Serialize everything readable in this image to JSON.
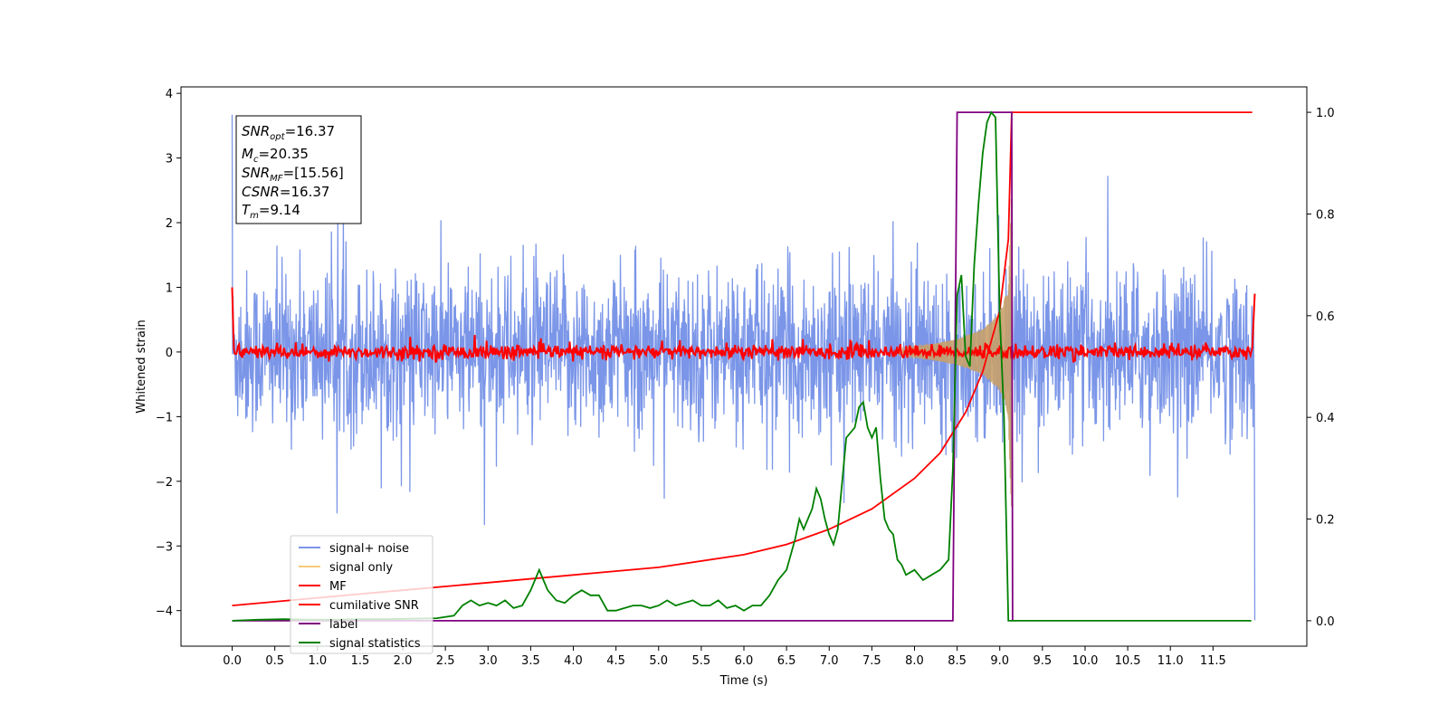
{
  "chart_data": {
    "type": "line",
    "xlabel": "Time (s)",
    "ylabel": "Whitened strain",
    "xlim": [
      -0.6,
      12.6
    ],
    "ylim": [
      -4.55,
      4.1
    ],
    "ylim_right": [
      -0.05,
      1.05
    ],
    "xticks": [
      "0.0",
      "0.5",
      "1.0",
      "1.5",
      "2.0",
      "2.5",
      "3.0",
      "3.5",
      "4.0",
      "4.5",
      "5.0",
      "5.5",
      "6.0",
      "6.5",
      "7.0",
      "7.5",
      "8.0",
      "8.5",
      "9.0",
      "9.5",
      "10.0",
      "10.5",
      "11.0",
      "11.5"
    ],
    "yticks_left": [
      "4",
      "3",
      "2",
      "1",
      "0",
      "−1",
      "−2",
      "−3",
      "−4"
    ],
    "yticks_right": [
      "1.0",
      "0.8",
      "0.6",
      "0.4",
      "0.2",
      "0.0"
    ],
    "grid": false,
    "legend_position": "lower-left",
    "annotation": {
      "snr_opt": "SNR",
      "snr_opt_sub": "opt",
      "snr_opt_value": "=16.37",
      "mc": "M",
      "mc_sub": "c",
      "mc_value": "=20.35",
      "snr_mf": "SNR",
      "snr_mf_sub": "MF",
      "snr_mf_value": "=[15.56]",
      "csnr": "CSNR",
      "csnr_value": "=16.37",
      "tm": "T",
      "tm_sub": "m",
      "tm_value": "=9.14"
    },
    "series": [
      {
        "name": "signal+ noise",
        "color": "#7b96e8",
        "axis": "left",
        "description_values": {
          "t_start": 0.0,
          "t_end": 11.99,
          "typical_range": [
            -1.6,
            1.6
          ],
          "max": 3.67,
          "min": -4.15
        }
      },
      {
        "name": "signal only",
        "color": "#f6c97a",
        "axis": "left",
        "x": [
          7.8,
          8.2,
          8.5,
          8.8,
          9.0,
          9.1,
          9.14
        ],
        "amplitude": [
          0.05,
          0.12,
          0.2,
          0.35,
          0.6,
          1.0,
          2.7
        ]
      },
      {
        "name": "MF",
        "color": "#ff0000",
        "axis": "left",
        "x": [
          0.0,
          0.02,
          11.96,
          11.99
        ],
        "y": [
          1.0,
          0.0,
          0.0,
          0.9
        ],
        "noise_range": [
          -0.2,
          0.2
        ]
      },
      {
        "name": "cumilative SNR",
        "color": "#ff0000",
        "axis": "right",
        "x": [
          0.0,
          1.0,
          2.0,
          3.0,
          4.0,
          5.0,
          6.0,
          6.5,
          7.0,
          7.5,
          8.0,
          8.3,
          8.6,
          8.8,
          9.0,
          9.1,
          9.14,
          9.15,
          11.96
        ],
        "y": [
          0.03,
          0.045,
          0.06,
          0.075,
          0.09,
          0.105,
          0.13,
          0.15,
          0.18,
          0.22,
          0.28,
          0.33,
          0.41,
          0.49,
          0.61,
          0.75,
          1.0,
          1.0,
          1.0
        ]
      },
      {
        "name": "label",
        "color": "#800080",
        "axis": "right",
        "x": [
          0.0,
          8.45,
          8.5,
          9.1,
          9.14,
          9.15
        ],
        "y": [
          0.0,
          0.0,
          1.0,
          1.0,
          1.0,
          0.0
        ]
      },
      {
        "name": "signal statistics",
        "color": "#008000",
        "axis": "right",
        "x": [
          0.0,
          0.3,
          0.6,
          0.9,
          1.2,
          1.5,
          1.8,
          2.1,
          2.4,
          2.6,
          2.7,
          2.8,
          2.9,
          3.0,
          3.1,
          3.2,
          3.3,
          3.4,
          3.5,
          3.6,
          3.65,
          3.7,
          3.8,
          3.9,
          4.0,
          4.1,
          4.2,
          4.3,
          4.4,
          4.5,
          4.6,
          4.7,
          4.8,
          4.9,
          5.0,
          5.1,
          5.2,
          5.3,
          5.4,
          5.5,
          5.6,
          5.7,
          5.8,
          5.9,
          6.0,
          6.1,
          6.2,
          6.3,
          6.4,
          6.5,
          6.6,
          6.65,
          6.7,
          6.75,
          6.8,
          6.85,
          6.9,
          6.95,
          7.0,
          7.05,
          7.1,
          7.2,
          7.3,
          7.35,
          7.4,
          7.45,
          7.5,
          7.55,
          7.6,
          7.65,
          7.7,
          7.75,
          7.8,
          7.85,
          7.9,
          8.0,
          8.1,
          8.2,
          8.3,
          8.4,
          8.45,
          8.5,
          8.55,
          8.6,
          8.65,
          8.7,
          8.75,
          8.8,
          8.85,
          8.9,
          8.95,
          9.0,
          9.05,
          9.1,
          9.15,
          9.2,
          11.95
        ],
        "y": [
          0.0,
          0.002,
          0.003,
          0.002,
          0.002,
          0.003,
          0.003,
          0.004,
          0.005,
          0.01,
          0.03,
          0.04,
          0.03,
          0.035,
          0.03,
          0.04,
          0.025,
          0.03,
          0.06,
          0.1,
          0.08,
          0.06,
          0.04,
          0.035,
          0.05,
          0.06,
          0.05,
          0.05,
          0.02,
          0.02,
          0.025,
          0.03,
          0.03,
          0.025,
          0.03,
          0.04,
          0.03,
          0.035,
          0.04,
          0.03,
          0.03,
          0.04,
          0.025,
          0.03,
          0.02,
          0.03,
          0.03,
          0.05,
          0.08,
          0.1,
          0.16,
          0.2,
          0.18,
          0.2,
          0.22,
          0.26,
          0.24,
          0.2,
          0.17,
          0.15,
          0.18,
          0.36,
          0.38,
          0.42,
          0.43,
          0.38,
          0.36,
          0.38,
          0.28,
          0.2,
          0.18,
          0.17,
          0.12,
          0.11,
          0.09,
          0.1,
          0.08,
          0.09,
          0.1,
          0.12,
          0.3,
          0.64,
          0.68,
          0.52,
          0.5,
          0.7,
          0.82,
          0.92,
          0.98,
          1.0,
          0.99,
          0.6,
          0.4,
          0.0,
          0.0,
          0.0,
          0.0
        ]
      }
    ]
  }
}
